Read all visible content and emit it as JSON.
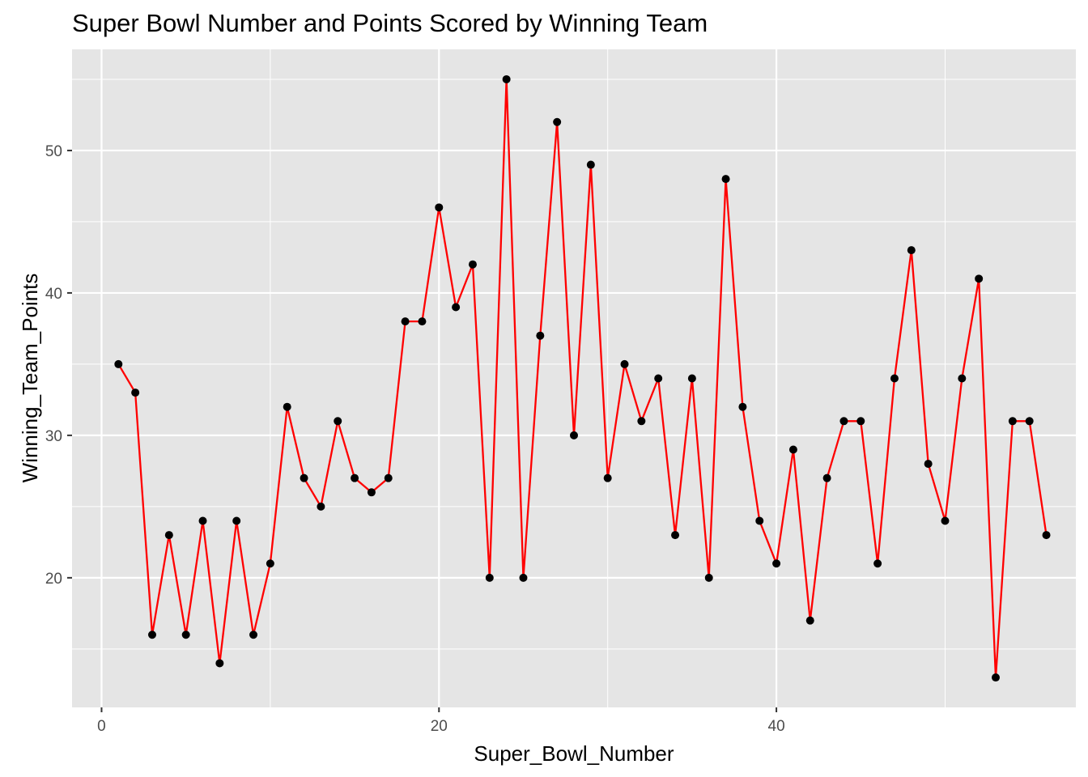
{
  "chart_data": {
    "type": "line",
    "title": "Super Bowl Number and Points Scored by Winning Team",
    "xlabel": "Super_Bowl_Number",
    "ylabel": "Winning_Team_Points",
    "xlim": [
      -1.75,
      57.75
    ],
    "ylim": [
      10.9,
      57.1
    ],
    "x_ticks": [
      0,
      20,
      40
    ],
    "y_ticks": [
      20,
      30,
      40,
      50
    ],
    "grid": true,
    "legend": "none",
    "colors": {
      "panel": "#e5e5e5",
      "grid": "#ffffff",
      "line": "#ff0000",
      "point": "#000000"
    },
    "x": [
      1,
      2,
      3,
      4,
      5,
      6,
      7,
      8,
      9,
      10,
      11,
      12,
      13,
      14,
      15,
      16,
      17,
      18,
      19,
      20,
      21,
      22,
      23,
      24,
      25,
      26,
      27,
      28,
      29,
      30,
      31,
      32,
      33,
      34,
      35,
      36,
      37,
      38,
      39,
      40,
      41,
      42,
      43,
      44,
      45,
      46,
      47,
      48,
      49,
      50,
      51,
      52,
      53,
      54,
      55,
      56
    ],
    "y": [
      35,
      33,
      16,
      23,
      16,
      24,
      14,
      24,
      16,
      21,
      32,
      27,
      25,
      31,
      27,
      26,
      27,
      38,
      38,
      46,
      39,
      42,
      20,
      55,
      20,
      37,
      52,
      30,
      49,
      27,
      35,
      31,
      34,
      23,
      34,
      20,
      48,
      32,
      24,
      21,
      29,
      17,
      27,
      31,
      31,
      21,
      34,
      43,
      28,
      24,
      34,
      41,
      13,
      31,
      31,
      23
    ]
  }
}
